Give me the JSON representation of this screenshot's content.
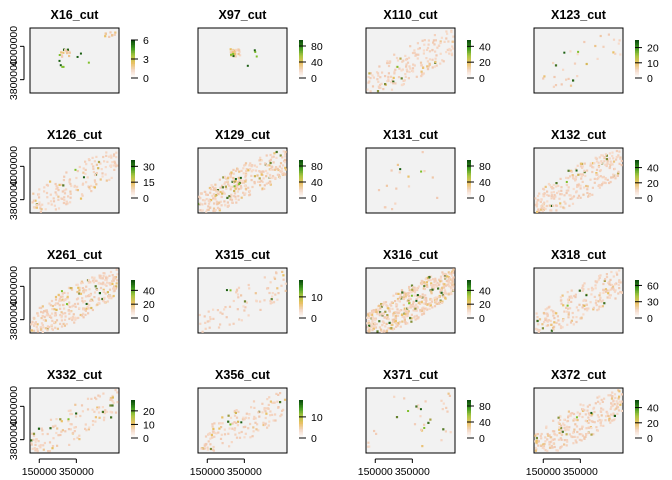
{
  "chart_data": [
    {
      "type": "heatmap",
      "title": "X16_cut",
      "xlim": [
        100000,
        580000
      ],
      "ylim": [
        3720000,
        4110000
      ],
      "yticks": [
        "3800000",
        "4000000"
      ],
      "xticks": [],
      "legend_ticks": [
        "0",
        "3",
        "6"
      ],
      "legend_max": 6,
      "grid": false,
      "density": 0.05,
      "zone": "spot",
      "color_level": 0.7
    },
    {
      "type": "heatmap",
      "title": "X97_cut",
      "xlim": [
        100000,
        580000
      ],
      "ylim": [
        3720000,
        4110000
      ],
      "yticks": [],
      "xticks": [],
      "legend_ticks": [
        "0",
        "40",
        "80"
      ],
      "legend_max": 95,
      "grid": false,
      "density": 0.05,
      "zone": "spot",
      "color_level": 0.6
    },
    {
      "type": "heatmap",
      "title": "X110_cut",
      "xlim": [
        100000,
        580000
      ],
      "ylim": [
        3720000,
        4110000
      ],
      "yticks": [],
      "xticks": [],
      "legend_ticks": [
        "0",
        "20",
        "40"
      ],
      "legend_max": 48,
      "grid": false,
      "density": 0.35,
      "zone": "band",
      "color_level": 0.12
    },
    {
      "type": "heatmap",
      "title": "X123_cut",
      "xlim": [
        100000,
        580000
      ],
      "ylim": [
        3720000,
        4110000
      ],
      "yticks": [],
      "xticks": [],
      "legend_ticks": [
        "0",
        "10",
        "20"
      ],
      "legend_max": 25,
      "grid": false,
      "density": 0.06,
      "zone": "band",
      "color_level": 0.15
    },
    {
      "type": "heatmap",
      "title": "X126_cut",
      "xlim": [
        100000,
        580000
      ],
      "ylim": [
        3720000,
        4110000
      ],
      "yticks": [
        "3800000",
        "4000000"
      ],
      "xticks": [],
      "legend_ticks": [
        "0",
        "15",
        "30"
      ],
      "legend_max": 36,
      "grid": false,
      "density": 0.3,
      "zone": "band",
      "color_level": 0.15
    },
    {
      "type": "heatmap",
      "title": "X129_cut",
      "xlim": [
        100000,
        580000
      ],
      "ylim": [
        3720000,
        4110000
      ],
      "yticks": [],
      "xticks": [],
      "legend_ticks": [
        "0",
        "40",
        "80"
      ],
      "legend_max": 95,
      "grid": false,
      "density": 0.6,
      "zone": "band",
      "color_level": 0.3
    },
    {
      "type": "heatmap",
      "title": "X131_cut",
      "xlim": [
        100000,
        580000
      ],
      "ylim": [
        3720000,
        4110000
      ],
      "yticks": [],
      "xticks": [],
      "legend_ticks": [
        "0",
        "40",
        "80"
      ],
      "legend_max": 95,
      "grid": false,
      "density": 0.05,
      "zone": "sparse",
      "color_level": 0.2
    },
    {
      "type": "heatmap",
      "title": "X132_cut",
      "xlim": [
        100000,
        580000
      ],
      "ylim": [
        3720000,
        4110000
      ],
      "yticks": [],
      "xticks": [],
      "legend_ticks": [
        "0",
        "20",
        "40"
      ],
      "legend_max": 50,
      "grid": false,
      "density": 0.5,
      "zone": "band",
      "color_level": 0.18
    },
    {
      "type": "heatmap",
      "title": "X261_cut",
      "xlim": [
        100000,
        580000
      ],
      "ylim": [
        3720000,
        4110000
      ],
      "yticks": [
        "3800000",
        "4000000"
      ],
      "xticks": [],
      "legend_ticks": [
        "0",
        "20",
        "40"
      ],
      "legend_max": 55,
      "grid": false,
      "density": 0.6,
      "zone": "band",
      "color_level": 0.25
    },
    {
      "type": "heatmap",
      "title": "X315_cut",
      "xlim": [
        100000,
        580000
      ],
      "ylim": [
        3720000,
        4110000
      ],
      "yticks": [],
      "xticks": [],
      "legend_ticks": [
        "0",
        "10"
      ],
      "legend_max": 18,
      "grid": false,
      "density": 0.15,
      "zone": "band",
      "color_level": 0.15
    },
    {
      "type": "heatmap",
      "title": "X316_cut",
      "xlim": [
        100000,
        580000
      ],
      "ylim": [
        3720000,
        4110000
      ],
      "yticks": [],
      "xticks": [],
      "legend_ticks": [
        "0",
        "20",
        "40"
      ],
      "legend_max": 55,
      "grid": false,
      "density": 0.95,
      "zone": "band",
      "color_level": 0.35
    },
    {
      "type": "heatmap",
      "title": "X318_cut",
      "xlim": [
        100000,
        580000
      ],
      "ylim": [
        3720000,
        4110000
      ],
      "yticks": [],
      "xticks": [],
      "legend_ticks": [
        "0",
        "30",
        "60"
      ],
      "legend_max": 70,
      "grid": false,
      "density": 0.4,
      "zone": "band",
      "color_level": 0.2
    },
    {
      "type": "heatmap",
      "title": "X332_cut",
      "xlim": [
        100000,
        580000
      ],
      "ylim": [
        3720000,
        4110000
      ],
      "yticks": [
        "3800000",
        "4000000"
      ],
      "xticks": [
        "150000",
        "350000"
      ],
      "legend_ticks": [
        "0",
        "10",
        "20"
      ],
      "legend_max": 28,
      "grid": false,
      "density": 0.25,
      "zone": "band",
      "color_level": 0.2
    },
    {
      "type": "heatmap",
      "title": "X356_cut",
      "xlim": [
        100000,
        580000
      ],
      "ylim": [
        3720000,
        4110000
      ],
      "yticks": [],
      "xticks": [
        "150000",
        "350000"
      ],
      "legend_ticks": [
        "0",
        "10"
      ],
      "legend_max": 18,
      "grid": false,
      "density": 0.3,
      "zone": "band",
      "color_level": 0.15
    },
    {
      "type": "heatmap",
      "title": "X371_cut",
      "xlim": [
        100000,
        580000
      ],
      "ylim": [
        3720000,
        4110000
      ],
      "yticks": [],
      "xticks": [
        "150000",
        "350000"
      ],
      "legend_ticks": [
        "0",
        "40",
        "80"
      ],
      "legend_max": 95,
      "grid": false,
      "density": 0.1,
      "zone": "sparse",
      "color_level": 0.25
    },
    {
      "type": "heatmap",
      "title": "X372_cut",
      "xlim": [
        100000,
        580000
      ],
      "ylim": [
        3720000,
        4110000
      ],
      "yticks": [],
      "xticks": [
        "150000",
        "350000"
      ],
      "legend_ticks": [
        "0",
        "20",
        "40"
      ],
      "legend_max": 50,
      "grid": false,
      "density": 0.5,
      "zone": "band",
      "color_level": 0.18
    }
  ],
  "colors": {
    "panel_background": "#f2f2f2",
    "low": "#f0c8b0",
    "mid": "#e8c060",
    "high": "#1a5e12",
    "legend_scale": [
      "#ffffff",
      "#f4d9c8",
      "#e8c060",
      "#a9c640",
      "#3e9a1e",
      "#0b4d0b"
    ]
  }
}
